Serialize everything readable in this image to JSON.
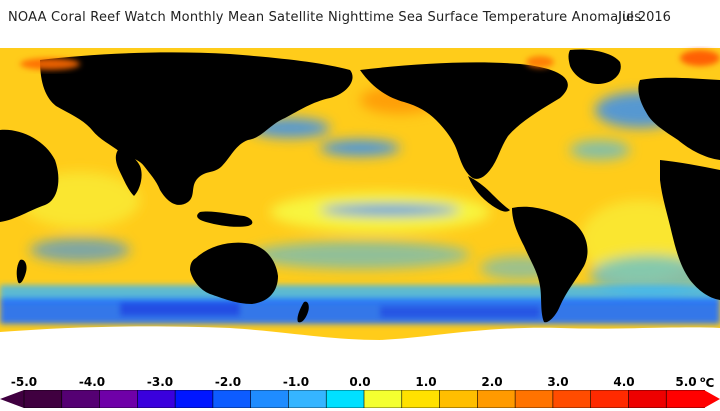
{
  "title": "NOAA Coral Reef Watch Monthly Mean Satellite Nighttime Sea Surface Temperature Anomalies",
  "date": "Jul 2016",
  "legend": {
    "ticks": [
      "-5.0",
      "-4.0",
      "-3.0",
      "-2.0",
      "-1.0",
      "0.0",
      "1.0",
      "2.0",
      "3.0",
      "4.0",
      "5.0"
    ],
    "unit": "°C",
    "colors": [
      "#400040",
      "#550073",
      "#6f00a8",
      "#3a00dd",
      "#0016ff",
      "#0d5cff",
      "#1f8cff",
      "#35b5ff",
      "#00e0ff",
      "#f4ff30",
      "#ffe100",
      "#ffbe00",
      "#ff9a00",
      "#ff7300",
      "#ff4c00",
      "#ff2a00",
      "#ee0000",
      "#ff0000"
    ]
  },
  "map_colors": {
    "land": "#000000",
    "ice": "#ffffff",
    "warm_anomaly": "#ffcc1a",
    "neutral": "#f6ff48",
    "hot_anomaly": "#ff6a00",
    "cool_anomaly": "#2a8cff",
    "cold_anomaly": "#1f3de0"
  }
}
